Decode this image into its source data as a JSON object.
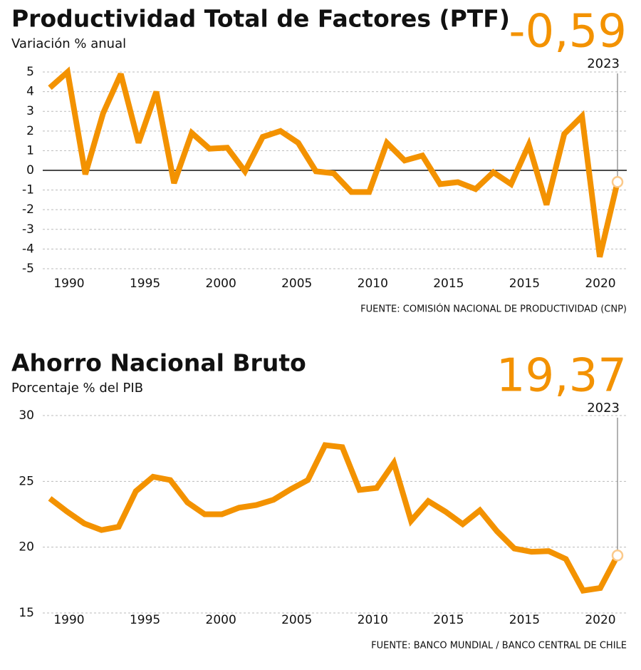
{
  "chart_data": [
    {
      "type": "line",
      "title": "Productividad Total de Factores (PTF)",
      "subtitle": "Variación % anual",
      "highlight": "-0,59",
      "highlight_label": "2023",
      "source": "FUENTE: COMISIÓN NACIONAL DE PRODUCTIVIDAD (CNP)",
      "xtick_labels": [
        "1990",
        "1995",
        "2000",
        "2005",
        "2010",
        "2015",
        "2015",
        "2020"
      ],
      "x": [
        1991,
        1992,
        1993,
        1994,
        1995,
        1996,
        1997,
        1998,
        1999,
        2000,
        2001,
        2002,
        2003,
        2004,
        2005,
        2006,
        2007,
        2008,
        2009,
        2010,
        2011,
        2012,
        2013,
        2014,
        2015,
        2016,
        2017,
        2018,
        2019,
        2020,
        2021,
        2022,
        2023
      ],
      "series": [
        {
          "color": "#f39200",
          "values": [
            4.2,
            5.0,
            -0.2,
            2.9,
            4.9,
            1.4,
            4.0,
            -0.65,
            1.9,
            1.1,
            1.15,
            -0.05,
            1.7,
            2.0,
            1.4,
            -0.05,
            -0.15,
            -1.1,
            -1.1,
            1.4,
            0.5,
            0.75,
            -0.7,
            -0.6,
            -0.95,
            -0.1,
            -0.7,
            1.3,
            -1.75,
            1.85,
            2.75,
            -4.4,
            -0.59
          ]
        }
      ],
      "xlim": [
        1991,
        2023
      ],
      "ylim": [
        -5.4,
        5.4
      ],
      "yticks": [
        5,
        4,
        3,
        2,
        1,
        0,
        -1,
        -2,
        -3,
        -4,
        -5
      ],
      "grid": true,
      "zero_line": true
    },
    {
      "type": "line",
      "title": "Ahorro Nacional Bruto",
      "subtitle": "Porcentaje % del PIB",
      "highlight": "19,37",
      "highlight_label": "2023",
      "source": "FUENTE: BANCO MUNDIAL / BANCO CENTRAL DE CHILE",
      "xtick_labels": [
        "1990",
        "1995",
        "2000",
        "2005",
        "2010",
        "2015",
        "2015",
        "2020"
      ],
      "x": [
        1990,
        1991,
        1992,
        1993,
        1994,
        1995,
        1996,
        1997,
        1998,
        1999,
        2000,
        2001,
        2002,
        2003,
        2004,
        2005,
        2006,
        2007,
        2008,
        2009,
        2010,
        2011,
        2012,
        2013,
        2014,
        2015,
        2016,
        2017,
        2018,
        2019,
        2020,
        2021,
        2022,
        2023
      ],
      "series": [
        {
          "color": "#f39200",
          "values": [
            23.7,
            22.7,
            21.8,
            21.3,
            21.55,
            24.25,
            25.35,
            25.1,
            23.4,
            22.5,
            22.5,
            23.0,
            23.2,
            23.6,
            24.4,
            25.1,
            27.75,
            27.6,
            24.35,
            24.5,
            26.4,
            22.0,
            23.5,
            22.7,
            21.75,
            22.8,
            21.2,
            19.9,
            19.65,
            19.7,
            19.1,
            16.7,
            16.9,
            19.37
          ]
        }
      ],
      "xlim": [
        1990,
        2023
      ],
      "ylim": [
        15,
        30
      ],
      "yticks": [
        30,
        25,
        20,
        15
      ],
      "grid": true,
      "zero_line": false
    }
  ]
}
